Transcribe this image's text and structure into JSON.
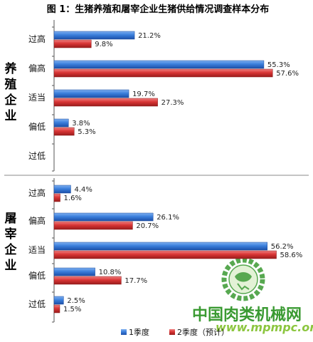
{
  "chart_data": {
    "type": "bar",
    "orientation": "horizontal",
    "title": "图 1：生猪养殖和屠宰企业生猪供给情况调查样本分布",
    "series": [
      {
        "name": "1季度",
        "color": "#2e6fd1"
      },
      {
        "name": "2季度（预计）",
        "color": "#d93535"
      }
    ],
    "groups": [
      {
        "name": "养殖企业",
        "categories": [
          "过高",
          "偏高",
          "适当",
          "偏低",
          "过低"
        ],
        "values": [
          [
            21.2,
            9.8
          ],
          [
            55.3,
            57.6
          ],
          [
            19.7,
            27.3
          ],
          [
            3.8,
            5.3
          ],
          [
            null,
            null
          ]
        ],
        "labels": [
          [
            "21.2%",
            "9.8%"
          ],
          [
            "55.3%",
            "57.6%"
          ],
          [
            "19.7%",
            "27.3%"
          ],
          [
            "3.8%",
            "5.3%"
          ],
          [
            "",
            ""
          ]
        ]
      },
      {
        "name": "屠宰企业",
        "categories": [
          "过高",
          "偏高",
          "适当",
          "偏低",
          "过低"
        ],
        "values": [
          [
            4.4,
            1.6
          ],
          [
            26.1,
            20.7
          ],
          [
            56.2,
            58.6
          ],
          [
            10.8,
            17.7
          ],
          [
            2.5,
            1.5
          ]
        ],
        "labels": [
          [
            "4.4%",
            "1.6%"
          ],
          [
            "26.1%",
            "20.7%"
          ],
          [
            "56.2%",
            "58.6%"
          ],
          [
            "10.8%",
            "17.7%"
          ],
          [
            "2.5%",
            "1.5%"
          ]
        ]
      }
    ],
    "xlim": [
      0,
      60
    ],
    "legend_position": "bottom"
  },
  "watermark": {
    "site_name": "中国肉类机械网",
    "url": "www.mpmpc.org"
  },
  "colors": {
    "series1": "#2e6fd1",
    "series2": "#d93535",
    "axis": "#555555"
  }
}
